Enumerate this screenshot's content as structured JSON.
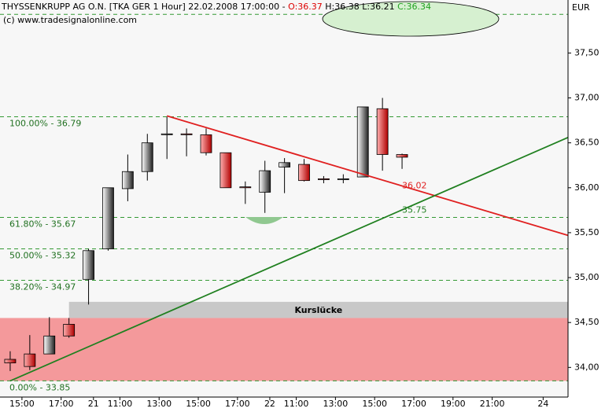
{
  "chart_data": {
    "type": "candlestick",
    "title": {
      "name": "THYSSENKRUPP AG O.N. [TKA GER  1 Hour] 22.02.2008 17:00:00 -",
      "open": "O:36.37",
      "highlow": "H:36.38 L:36.21",
      "close": "C:36.34"
    },
    "copyright": "(c) www.tradesignalonline.com",
    "currency": "EUR",
    "up_color": "#808080",
    "down_color": "#cc0000",
    "x": [
      0,
      1,
      2,
      3,
      4,
      5,
      6,
      7,
      8,
      9,
      10,
      11,
      12,
      13,
      14,
      15,
      16,
      17,
      18,
      19,
      20
    ],
    "open": [
      34.09,
      34.15,
      34.15,
      34.48,
      34.98,
      35.32,
      35.99,
      36.18,
      36.59,
      36.6,
      36.59,
      36.39,
      36.01,
      35.95,
      36.23,
      36.26,
      36.1,
      36.09,
      36.12,
      36.88,
      36.37
    ],
    "high": [
      34.18,
      34.36,
      34.56,
      34.55,
      35.32,
      36.0,
      36.37,
      36.6,
      36.79,
      36.66,
      36.66,
      36.39,
      36.07,
      36.3,
      36.33,
      36.32,
      36.13,
      36.15,
      36.9,
      37.0,
      36.38
    ],
    "low": [
      33.96,
      33.97,
      34.15,
      34.33,
      34.7,
      35.3,
      35.85,
      36.08,
      36.32,
      36.35,
      36.36,
      36.0,
      35.82,
      35.72,
      35.94,
      36.07,
      36.05,
      36.05,
      36.12,
      36.19,
      36.21
    ],
    "close": [
      34.05,
      34.01,
      34.35,
      34.35,
      35.3,
      36.0,
      36.18,
      36.5,
      36.6,
      36.59,
      36.39,
      36.0,
      36.0,
      36.19,
      36.28,
      36.08,
      36.09,
      36.1,
      36.9,
      36.37,
      36.34
    ],
    "xlim": [
      -0.52,
      28.47
    ],
    "ylim": [
      33.67,
      38.09
    ],
    "yticks": [
      {
        "value": 34.0,
        "label": "34,00"
      },
      {
        "value": 34.5,
        "label": "34,50"
      },
      {
        "value": 35.0,
        "label": "35,00"
      },
      {
        "value": 35.5,
        "label": "35,50"
      },
      {
        "value": 36.0,
        "label": "36,00"
      },
      {
        "value": 36.5,
        "label": "36,50"
      },
      {
        "value": 37.0,
        "label": "37,00"
      },
      {
        "value": 37.5,
        "label": "37,50"
      }
    ],
    "xticks": [
      {
        "value": 0.6,
        "label": "15:00"
      },
      {
        "value": 2.6,
        "label": "17:00"
      },
      {
        "value": 4.25,
        "label": "21"
      },
      {
        "value": 5.6,
        "label": "11:00"
      },
      {
        "value": 7.6,
        "label": "13:00"
      },
      {
        "value": 9.6,
        "label": "15:00"
      },
      {
        "value": 11.6,
        "label": "17:00"
      },
      {
        "value": 13.25,
        "label": "22"
      },
      {
        "value": 14.6,
        "label": "11:00"
      },
      {
        "value": 16.6,
        "label": "13:00"
      },
      {
        "value": 18.6,
        "label": "15:00"
      },
      {
        "value": 20.6,
        "label": "17:00"
      },
      {
        "value": 22.6,
        "label": "19:00"
      },
      {
        "value": 24.6,
        "label": "21:00"
      },
      {
        "value": 27.2,
        "label": "24"
      }
    ],
    "fib_levels": [
      {
        "value": 37.93,
        "label": null
      },
      {
        "value": 36.79,
        "label": "100.00% - 36.79"
      },
      {
        "value": 35.67,
        "label": "61.80% - 35.67"
      },
      {
        "value": 35.32,
        "label": "50.00% - 35.32"
      },
      {
        "value": 34.97,
        "label": "38.20% - 34.97"
      },
      {
        "value": 33.85,
        "label": "0.00% - 33.85"
      }
    ],
    "fib_color": "#339933",
    "zones": [
      {
        "ylim": [
          34.55,
          34.73
        ],
        "xstart": 3,
        "color": "#c8c8c8",
        "label": "Kurslücke"
      },
      {
        "ylim": [
          33.85,
          34.55
        ],
        "xstart": -0.52,
        "color": "#f4999b",
        "label": null
      }
    ],
    "trendlines": [
      {
        "color": "#e02020",
        "x": [
          8,
          28.47
        ],
        "y": [
          36.8,
          35.47
        ],
        "label": "36.02",
        "label_x": 20,
        "label_y": 36.02
      },
      {
        "color": "#208020",
        "x": [
          0,
          28.47
        ],
        "y": [
          33.85,
          36.56
        ],
        "label": "35.75",
        "label_x": 20,
        "label_y": 35.75
      }
    ]
  }
}
